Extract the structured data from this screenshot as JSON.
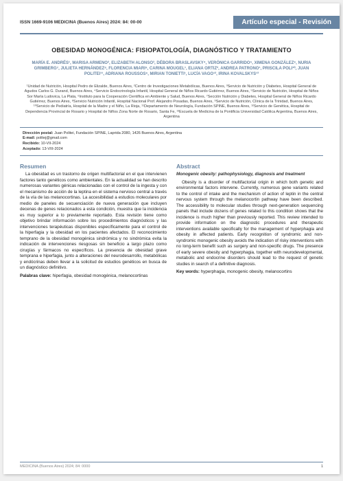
{
  "colors": {
    "accent": "#6885a3",
    "text": "#222222",
    "muted": "#888888",
    "bg": "#ffffff"
  },
  "header": {
    "issn": "ISSN 1669-9106 MEDICINA (Buenos Aires) 2024: 84: 00-00",
    "article_type": "Artículo especial - Revisión"
  },
  "title": "OBESIDAD MONOGÉNICA: FISIOPATOLOGÍA, DIAGNÓSTICO Y TRATAMIENTO",
  "authors": "MARÍA E. ANDRÉS¹, MARISA ARMENO², ELIZABETH ALONSO³, DÉBORA BRASLAVSKY⁴, VERÓNICA GARRIDO⁵, XIMENA GONZÁLEZ⁶, NURIA GRIMBERG⁷, JULIETA HERNÁNDEZ⁸, FLORENCIA MIARI⁹, CARINA MOUGEL¹, ELIANA ORTIZ², ANDREA PATRONO¹, PRISCILA POLI¹⁰, JUAN POLITEI¹¹, ADRIANA ROUSSOS⁶, MIRIAN TONIETTI¹, LUCÍA VAGO¹², IRINA KOVALSKYS¹³",
  "affiliations": "¹Unidad de Nutrición, Hospital Pedro de Elizalde, Buenos Aires, ²Centro de Investigaciones Metabólicas, Buenos Aires, ³Servicio de Nutrición y Diabetes, Hospital General de Agudos Carlos G. Durand, Buenos Aires, ⁴Servicio Endocrinología Infantil, Hospital General de Niños Ricardo Gutiérrez, Buenos Aires, ⁵Servicio de Nutrición, Hospital de Niños Sor María Ludovica, La Plata, ⁶Instituto para la Cooperación Científica en Ambiente y Salud, Buenos Aires, ⁷Sección Nutrición y Diabetes, Hospital General de Niños Ricardo Gutiérrez, Buenos Aires, ⁸Servicio Nutrición Infantil, Hospital Nacional Prof. Alejandro Posadas, Buenos Aires, ⁹Servicio de Nutrición, Clínica de la Trinidad, Buenos Aires, ¹⁰Servicio de Pediatría, Hospital de la Madre y el Niño, La Rioja, ¹¹Departamento de Neurología, Fundación SPINE, Buenos Aires, ¹²Servicio de Genética, Hospital de Dependencia Provincial de Rosario y Hospital de Niños Zona Norte de Rosario, Santa Fe, ¹³Escuela de Medicina de la Pontificia Universidad Católica Argentina, Buenos Aires, Argentina",
  "contact": {
    "postal_label": "Dirección postal:",
    "postal_value": "Juan Politei, Fundación SPINE, Laprida 2080, 1426 Buenos Aires, Argentina",
    "email_label": "E-mail:",
    "email_value": "politej@gmail.com",
    "received_label": "Recibido:",
    "received_value": "10-VII-2024",
    "accepted_label": "Aceptado:",
    "accepted_value": "13-VIII-2024"
  },
  "resumen": {
    "title": "Resumen",
    "body": "La obesidad es un trastorno de origen multifactorial en el que intervienen factores tanto genéticos como ambientales. En la actualidad se han descrito numerosas variantes génicas relacionadas con el control de la ingesta y con el mecanismo de acción de la leptina en el sistema nervioso central a través de la vía de las melanocortinas. La accesibilidad a estudios moleculares por medio de paneles de secuenciación de nueva generación que incluyen decenas de genes relacionados a esta condición, muestra que la incidencia es muy superior a lo previamente reportado. Esta revisión tiene como objetivo brindar información sobre los procedimientos diagnósticos y las intervenciones terapéuticas disponibles específicamente para el control de la hiperfagia y la obesidad en los pacientes afectados. El reconocimiento temprano de la obesidad monogénica sindrómica y no sindrómica evita la indicación de intervenciones riesgosas sin beneficio a largo plazo como cirugías y fármacos no específicos. La presencia de obesidad grave temprana e hiperfagia, junto a alteraciones del neurodesarrollo, metabólicas y endócrinas deben llevar a la solicitud de estudios genéticos en busca de un diagnóstico definitivo.",
    "keywords_label": "Palabras clave:",
    "keywords": "hiperfagia, obesidad monogénica, melanocortinas"
  },
  "abstract": {
    "title": "Abstract",
    "subtitle": "Monogenic obesity: pathophysiology, diagnosis and treatment",
    "body": "Obesity is a disorder of multifactorial origin in which both genetic and environmental factors intervene. Currently, numerous gene variants related to the control of intake and the mechanism of action of leptin in the central nervous system through the melanocortin pathway have been described. The accessibility to molecular studies through next-generation sequencing panels that include dozens of genes related to this condition shows that the incidence is much higher than previously reported. This review intended to provide information on the diagnostic procedures and therapeutic interventions available specifically for the management of hyperphagia and obesity in affected patients. Early recognition of syndromic and non-syndromic monogenic obesity avoids the indication of risky interventions with no long-term benefit such as surgery and non-specific drugs. The presence of early severe obesity and hyperphagia, together with neurodevelopmental, metabolic and endocrine disorders should lead to the request of genetic studies in search of a definitive diagnosis.",
    "keywords_label": "Key words:",
    "keywords": "hyperphagia, monogenic obesity, melanocortins"
  },
  "footer": {
    "cite": "MEDICINA (Buenos Aires) 2024; 84: 0000",
    "page": "1"
  }
}
